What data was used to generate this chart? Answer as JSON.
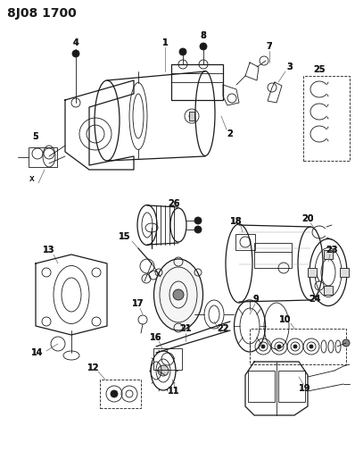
{
  "title": "8J08 1700",
  "bg_color": "#ffffff",
  "line_color": "#1a1a1a",
  "title_fontsize": 10,
  "label_fontsize": 7,
  "fig_width": 3.98,
  "fig_height": 5.33,
  "dpi": 100
}
